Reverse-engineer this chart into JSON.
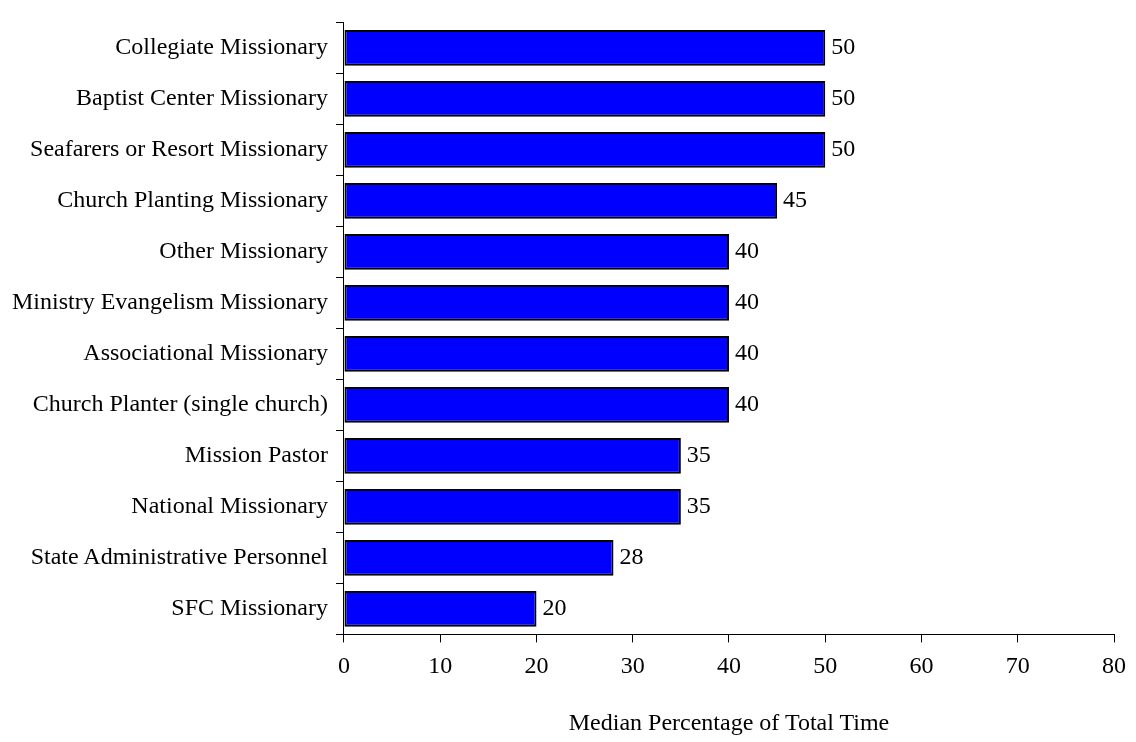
{
  "chart_data": {
    "type": "bar",
    "orientation": "horizontal",
    "xlabel": "Median Percentage of Total Time",
    "categories": [
      "Collegiate Missionary",
      "Baptist Center Missionary",
      "Seafarers or Resort Missionary",
      "Church Planting Missionary",
      "Other Missionary",
      "Ministry Evangelism Missionary",
      "Associational Missionary",
      "Church Planter (single church)",
      "Mission Pastor",
      "National Missionary",
      "State Administrative Personnel",
      "SFC Missionary"
    ],
    "values": [
      50,
      50,
      50,
      45,
      40,
      40,
      40,
      40,
      35,
      35,
      28,
      20
    ],
    "color": "#0000ff",
    "xlim": [
      0,
      80
    ],
    "xticks": [
      0,
      10,
      20,
      30,
      40,
      50,
      60,
      70,
      80
    ],
    "data_labels": true,
    "grid": false,
    "legend": false
  }
}
